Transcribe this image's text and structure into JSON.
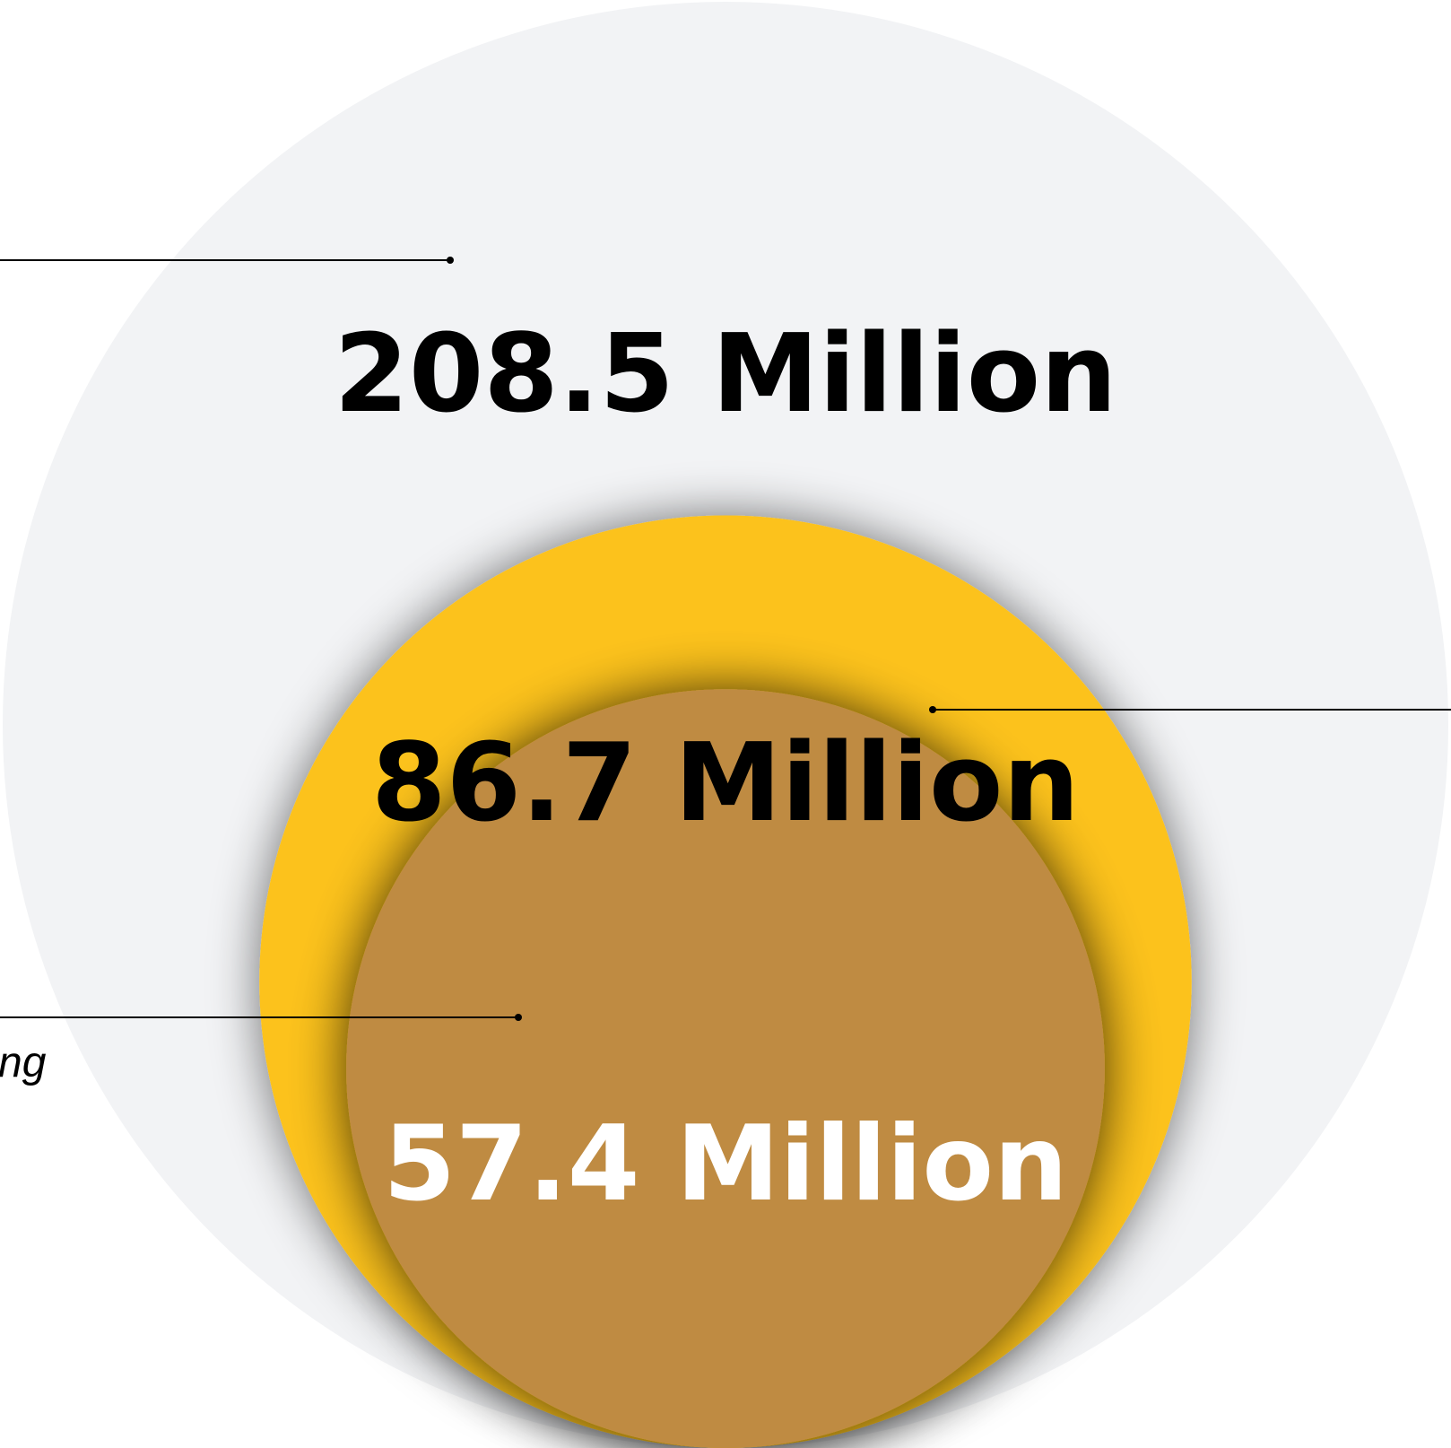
{
  "chart_data": {
    "type": "nested-bubble",
    "title": "",
    "series": [
      {
        "value": 208.5,
        "label": "208.5 Million",
        "color": "#f2f3f5",
        "text_color": "#000000"
      },
      {
        "value": 86.7,
        "label": "86.7 Million",
        "color": "#fcc21b",
        "text_color": "#000000"
      },
      {
        "value": 57.4,
        "label": "57.4 Million",
        "color": "#bf8b43",
        "text_color": "#ffffff"
      }
    ],
    "side_text": [
      "ng"
    ],
    "connector_color": "#000000",
    "legend": "none",
    "grid": false
  }
}
